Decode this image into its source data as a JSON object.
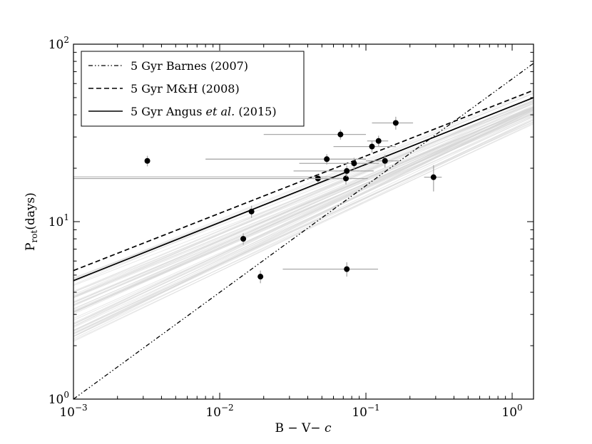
{
  "chart_data": {
    "type": "scatter",
    "xscale": "log",
    "yscale": "log",
    "xlim": [
      0.001,
      1.4
    ],
    "ylim": [
      1,
      100
    ],
    "xlabel": {
      "main": "B − V− ",
      "italic": "c"
    },
    "ylabel": {
      "main": "P",
      "sub": "rot",
      "tail": "(days)"
    },
    "xticks": [
      {
        "value": 0.001,
        "base": "10",
        "exp": "−3"
      },
      {
        "value": 0.01,
        "base": "10",
        "exp": "−2"
      },
      {
        "value": 0.1,
        "base": "10",
        "exp": "−1"
      },
      {
        "value": 1,
        "base": "10",
        "exp": "0"
      }
    ],
    "yticks": [
      {
        "value": 1,
        "base": "10",
        "exp": "0"
      },
      {
        "value": 10,
        "base": "10",
        "exp": "1"
      },
      {
        "value": 100,
        "base": "10",
        "exp": "2"
      }
    ],
    "legend": [
      {
        "label": "5 Gyr Barnes (2007)",
        "style": "dashdotdot"
      },
      {
        "label": "5 Gyr M&H (2008)",
        "style": "dashed"
      },
      {
        "label_parts": [
          "5 Gyr Angus ",
          "et al.",
          " (2015)"
        ],
        "style": "solid"
      }
    ],
    "models": [
      {
        "name": "5 Gyr Barnes (2007)",
        "style": "dashdotdot",
        "color": "#000000",
        "x": [
          0.001,
          1.4
        ],
        "y": [
          1.0,
          78
        ]
      },
      {
        "name": "5 Gyr M&H (2008)",
        "style": "dashed",
        "color": "#000000",
        "x": [
          0.001,
          1.4
        ],
        "y": [
          5.3,
          55
        ]
      },
      {
        "name": "5 Gyr Angus et al. (2015)",
        "style": "solid",
        "color": "#000000",
        "x": [
          0.001,
          1.4
        ],
        "y": [
          4.65,
          50
        ]
      }
    ],
    "posterior_samples": {
      "color": "#d6d6d6",
      "count": 60,
      "y_at_xmin": [
        2.1,
        5.0
      ],
      "y_at_xmax": [
        32,
        54
      ]
    },
    "points": [
      {
        "x": 0.0032,
        "y": 22.0,
        "xerr": [
          0,
          0
        ],
        "yerr": [
          1.5,
          1.5
        ]
      },
      {
        "x": 0.0145,
        "y": 8.0,
        "xerr": [
          0,
          0
        ],
        "yerr": [
          0.6,
          0.6
        ]
      },
      {
        "x": 0.0165,
        "y": 11.4,
        "xerr": [
          0,
          0
        ],
        "yerr": [
          0.9,
          0.9
        ]
      },
      {
        "x": 0.019,
        "y": 4.9,
        "xerr": [
          0,
          0
        ],
        "yerr": [
          0.4,
          0.4
        ]
      },
      {
        "x": 0.047,
        "y": 17.5,
        "xerr": [
          0.047,
          0.03
        ],
        "yerr": [
          0.9,
          0.9
        ]
      },
      {
        "x": 0.054,
        "y": 22.5,
        "xerr": [
          0.046,
          0.046
        ],
        "yerr": [
          1.5,
          1.5
        ]
      },
      {
        "x": 0.067,
        "y": 31.0,
        "xerr": [
          0.047,
          0.033
        ],
        "yerr": [
          2.0,
          2.0
        ]
      },
      {
        "x": 0.073,
        "y": 17.5,
        "xerr": [
          0.03,
          0.03
        ],
        "yerr": [
          1.3,
          1.3
        ]
      },
      {
        "x": 0.074,
        "y": 19.3,
        "xerr": [
          0.042,
          0.039
        ],
        "yerr": [
          1.4,
          1.4
        ]
      },
      {
        "x": 0.074,
        "y": 5.4,
        "xerr": [
          0.047,
          0.047
        ],
        "yerr": [
          0.5,
          0.5
        ]
      },
      {
        "x": 0.083,
        "y": 21.3,
        "xerr": [
          0.048,
          0.04
        ],
        "yerr": [
          1.6,
          1.6
        ]
      },
      {
        "x": 0.11,
        "y": 26.5,
        "xerr": [
          0.05,
          0.05
        ],
        "yerr": [
          2.0,
          2.0
        ]
      },
      {
        "x": 0.122,
        "y": 28.5,
        "xerr": [
          0.02,
          0.02
        ],
        "yerr": [
          2.0,
          2.0
        ]
      },
      {
        "x": 0.135,
        "y": 22.0,
        "xerr": [
          0.035,
          0.035
        ],
        "yerr": [
          1.8,
          1.8
        ]
      },
      {
        "x": 0.16,
        "y": 36.0,
        "xerr": [
          0.05,
          0.05
        ],
        "yerr": [
          3.0,
          3.0
        ]
      },
      {
        "x": 0.29,
        "y": 17.8,
        "xerr": [
          0.04,
          0.04
        ],
        "yerr": [
          3.0,
          3.0
        ]
      }
    ],
    "hline": {
      "y": 17.9,
      "x": [
        0.001,
        0.06
      ],
      "color": "#b8b8b8"
    }
  }
}
